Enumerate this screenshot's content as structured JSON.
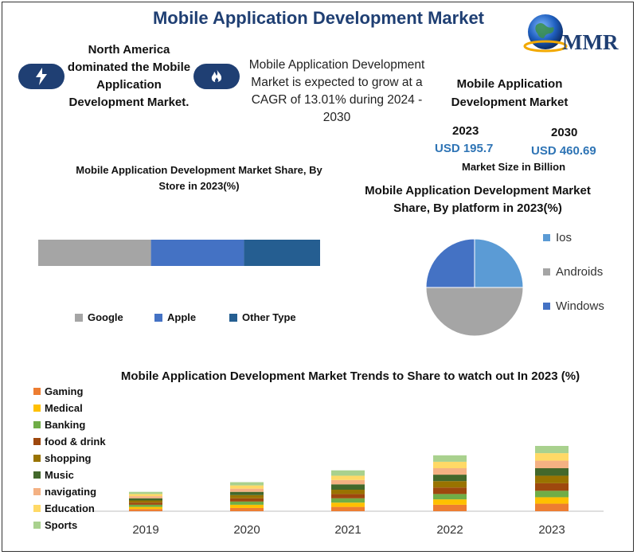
{
  "header": {
    "title": "Mobile Application Development Market",
    "logo_text": "MMR"
  },
  "highlights": {
    "region_text": "North America dominated the Mobile Application Development Market.",
    "cagr_text": "Mobile Application Development Market is expected to grow at a CAGR of 13.01% during 2024 - 2030",
    "icons": [
      "lightning-icon",
      "flame-icon"
    ],
    "accent_color": "#1f3f73"
  },
  "market_size": {
    "title": "Mobile Application Development Market",
    "year_start": "2023",
    "value_start": "USD 195.7",
    "year_end": "2030",
    "value_end": "USD 460.69",
    "unit": "Market Size in Billion"
  },
  "chart_data": [
    {
      "type": "bar",
      "orientation": "horizontal-stacked",
      "title": "Mobile Application Development Market Share, By Store in 2023(%)",
      "series": [
        {
          "name": "Google",
          "values": [
            40
          ],
          "color": "#a5a5a5"
        },
        {
          "name": "Apple",
          "values": [
            33
          ],
          "color": "#4472c4"
        },
        {
          "name": "Other Type",
          "values": [
            27
          ],
          "color": "#255e91"
        }
      ],
      "legend": "bottom"
    },
    {
      "type": "pie",
      "title": "Mobile Application Development Market Share, By platform in 2023(%)",
      "labels": [
        "Ios",
        "Androids",
        "Windows"
      ],
      "values": [
        25,
        50,
        25
      ],
      "colors": [
        "#5b9bd5",
        "#a5a5a5",
        "#4472c4"
      ],
      "legend": "right"
    },
    {
      "type": "bar",
      "orientation": "vertical-stacked",
      "title": "Mobile Application Development Market  Trends to Share to watch out In 2023 (%)",
      "categories": [
        "2019",
        "2020",
        "2021",
        "2022",
        "2023"
      ],
      "series": [
        {
          "name": "Gaming",
          "values": [
            1,
            1.5,
            2,
            3,
            3.5
          ],
          "color": "#ed7d31"
        },
        {
          "name": "Medical",
          "values": [
            1,
            1.5,
            2,
            2.5,
            3
          ],
          "color": "#ffc000"
        },
        {
          "name": "Banking",
          "values": [
            1,
            1.5,
            2,
            2.5,
            3
          ],
          "color": "#70ad47"
        },
        {
          "name": "food & drink",
          "values": [
            1,
            1.5,
            2,
            3,
            3.5
          ],
          "color": "#9e480e"
        },
        {
          "name": "shopping",
          "values": [
            1,
            1.5,
            2,
            3,
            3.5
          ],
          "color": "#997300"
        },
        {
          "name": "Music",
          "values": [
            1,
            1.5,
            2.5,
            3,
            3.5
          ],
          "color": "#43682b"
        },
        {
          "name": "navigating",
          "values": [
            1,
            1.5,
            2,
            3,
            3.5
          ],
          "color": "#f4b183"
        },
        {
          "name": "Education",
          "values": [
            1,
            1.5,
            2,
            3,
            3.5
          ],
          "color": "#ffd966"
        },
        {
          "name": "Sports",
          "values": [
            1,
            1.5,
            2.5,
            3,
            3.5
          ],
          "color": "#a9d18e"
        }
      ],
      "legend": "left"
    }
  ]
}
